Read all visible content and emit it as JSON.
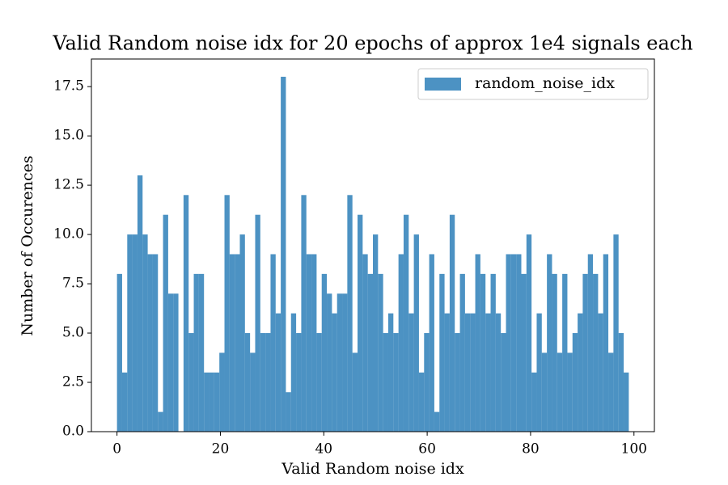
{
  "chart_data": {
    "type": "histogram",
    "title": "Valid Random noise idx for 20 epochs of approx 1e4 signals each",
    "xlabel": "Valid Random noise idx",
    "ylabel": "Number of Occurences",
    "bins": [
      0,
      0.99,
      1.98,
      2.97,
      3.96,
      4.95,
      5.94,
      6.93,
      7.92,
      8.91,
      9.9,
      10.89,
      11.88,
      12.87,
      13.86,
      14.85,
      15.84,
      16.83,
      17.82,
      18.81,
      19.8,
      20.79,
      21.78,
      22.77,
      23.76,
      24.75,
      25.74,
      26.73,
      27.72,
      28.71,
      29.7,
      30.69,
      31.68,
      32.67,
      33.66,
      34.65,
      35.64,
      36.63,
      37.62,
      38.61,
      39.6,
      40.59,
      41.58,
      42.57,
      43.56,
      44.55,
      45.54,
      46.53,
      47.52,
      48.51,
      49.5,
      50.49,
      51.48,
      52.47,
      53.46,
      54.45,
      55.44,
      56.43,
      57.42,
      58.41,
      59.4,
      60.39,
      61.38,
      62.37,
      63.36,
      64.35,
      65.34,
      66.33,
      67.32,
      68.31,
      69.3,
      70.29,
      71.28,
      72.27,
      73.26,
      74.25,
      75.24,
      76.23,
      77.22,
      78.21,
      79.2,
      80.19,
      81.18,
      82.17,
      83.16,
      84.15,
      85.14,
      86.13,
      87.12,
      88.11,
      89.1,
      90.09,
      91.08,
      92.07,
      93.06,
      94.05,
      95.04,
      96.03,
      97.02,
      98.01,
      99
    ],
    "series": [
      {
        "name": "random_noise_idx",
        "color": "#1f77b4",
        "alpha": 0.8,
        "values": [
          8,
          3,
          10,
          10,
          13,
          10,
          9,
          9,
          1,
          11,
          7,
          7,
          0,
          12,
          5,
          8,
          8,
          3,
          3,
          3,
          4,
          12,
          9,
          9,
          10,
          5,
          4,
          11,
          5,
          5,
          9,
          6,
          18,
          2,
          6,
          5,
          12,
          9,
          9,
          5,
          8,
          7,
          6,
          7,
          7,
          12,
          4,
          11,
          9,
          8,
          10,
          8,
          5,
          6,
          5,
          9,
          11,
          6,
          10,
          3,
          5,
          9,
          1,
          8,
          6,
          11,
          5,
          8,
          6,
          6,
          9,
          8,
          6,
          8,
          6,
          5,
          9,
          9,
          9,
          8,
          10,
          3,
          6,
          4,
          9,
          8,
          4,
          8,
          4,
          5,
          6,
          8,
          9,
          8,
          6,
          9,
          4,
          10,
          5,
          3
        ]
      }
    ],
    "xlim": [
      -4.95,
      103.95
    ],
    "xticks": [
      0,
      20,
      40,
      60,
      80,
      100
    ],
    "ylim": [
      0,
      18.9
    ],
    "yticks": [
      {
        "value": 0,
        "label": "0.0"
      },
      {
        "value": 2.5,
        "label": "2.5"
      },
      {
        "value": 5,
        "label": "5.0"
      },
      {
        "value": 7.5,
        "label": "7.5"
      },
      {
        "value": 10,
        "label": "10.0"
      },
      {
        "value": 12.5,
        "label": "12.5"
      },
      {
        "value": 15,
        "label": "15.0"
      },
      {
        "value": 17.5,
        "label": "17.5"
      }
    ],
    "legend": "upper right",
    "grid": false
  }
}
